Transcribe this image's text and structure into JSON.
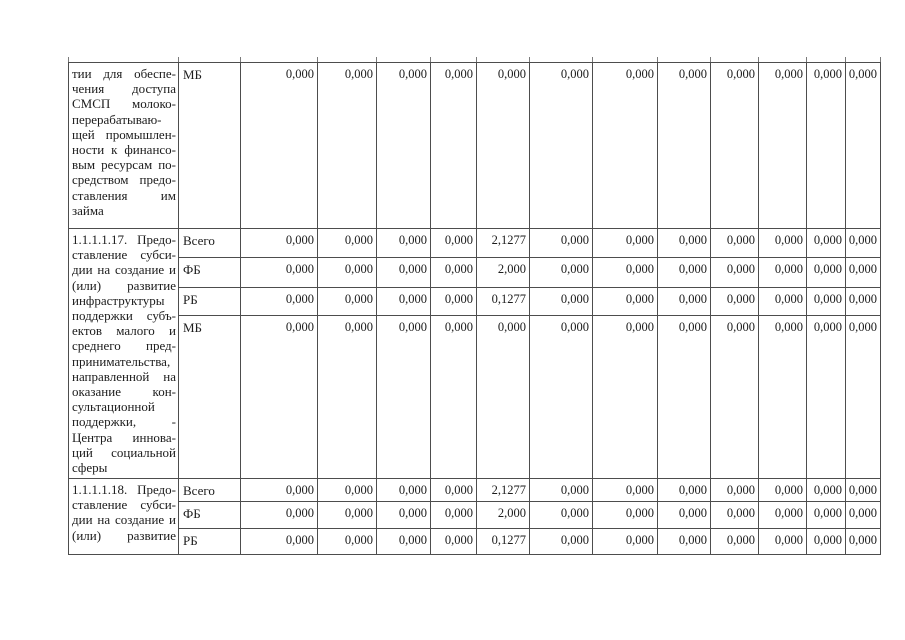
{
  "table": {
    "sections": [
      {
        "description_lines": [
          "тии для обеспе-",
          "чения доступа",
          "СМСП молоко-",
          "перерабатываю-",
          "щей промышлен-",
          "ности к финансо-",
          "вым ресурсам по-",
          "средством предо-",
          "ставления им",
          "займа"
        ],
        "rows": [
          {
            "label": "МБ",
            "values": [
              "0,000",
              "0,000",
              "0,000",
              "0,000",
              "0,000",
              "0,000",
              "0,000",
              "0,000",
              "0,000",
              "0,000",
              "0,000",
              "0,000"
            ]
          }
        ]
      },
      {
        "description_lines": [
          "1.1.1.1.17. Предо-",
          "ставление субси-",
          "дии на создание и",
          "(или) развитие",
          "инфраструктуры",
          "поддержки субъ-",
          "ектов малого и",
          "среднего пред-",
          "принимательства,",
          "направленной на",
          "оказание кон-",
          "сультационной",
          "поддержки, -",
          "Центра иннова-",
          "ций социальной",
          "сферы"
        ],
        "rows": [
          {
            "label": "Всего",
            "values": [
              "0,000",
              "0,000",
              "0,000",
              "0,000",
              "2,1277",
              "0,000",
              "0,000",
              "0,000",
              "0,000",
              "0,000",
              "0,000",
              "0,000"
            ]
          },
          {
            "label": "ФБ",
            "values": [
              "0,000",
              "0,000",
              "0,000",
              "0,000",
              "2,000",
              "0,000",
              "0,000",
              "0,000",
              "0,000",
              "0,000",
              "0,000",
              "0,000"
            ]
          },
          {
            "label": "РБ",
            "values": [
              "0,000",
              "0,000",
              "0,000",
              "0,000",
              "0,1277",
              "0,000",
              "0,000",
              "0,000",
              "0,000",
              "0,000",
              "0,000",
              "0,000"
            ]
          },
          {
            "label": "МБ",
            "values": [
              "0,000",
              "0,000",
              "0,000",
              "0,000",
              "0,000",
              "0,000",
              "0,000",
              "0,000",
              "0,000",
              "0,000",
              "0,000",
              "0,000"
            ]
          }
        ]
      },
      {
        "description_lines": [
          "1.1.1.1.18. Предо-",
          "ставление субси-",
          "дии на создание и",
          "(или) развитие"
        ],
        "rows": [
          {
            "label": "Всего",
            "values": [
              "0,000",
              "0,000",
              "0,000",
              "0,000",
              "2,1277",
              "0,000",
              "0,000",
              "0,000",
              "0,000",
              "0,000",
              "0,000",
              "0,000"
            ]
          },
          {
            "label": "ФБ",
            "values": [
              "0,000",
              "0,000",
              "0,000",
              "0,000",
              "2,000",
              "0,000",
              "0,000",
              "0,000",
              "0,000",
              "0,000",
              "0,000",
              "0,000"
            ]
          },
          {
            "label": "РБ",
            "values": [
              "0,000",
              "0,000",
              "0,000",
              "0,000",
              "0,1277",
              "0,000",
              "0,000",
              "0,000",
              "0,000",
              "0,000",
              "0,000",
              "0,000"
            ]
          }
        ]
      }
    ]
  }
}
